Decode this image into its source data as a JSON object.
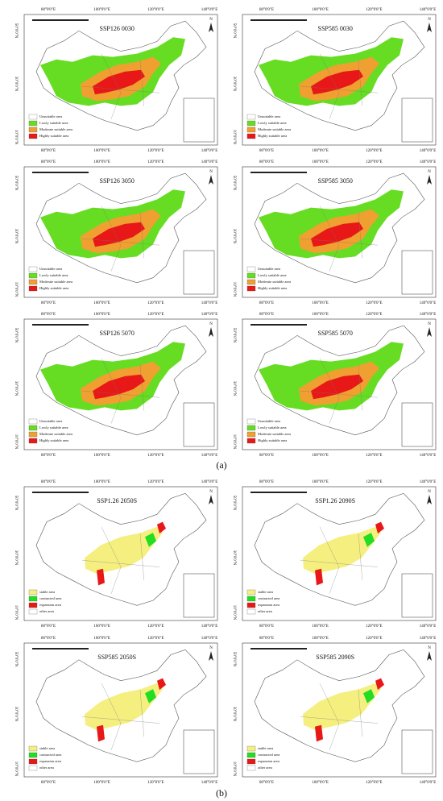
{
  "figure_a": {
    "caption": "(a)",
    "panels": [
      {
        "title": "SSP126 0030"
      },
      {
        "title": "SSP585 0030"
      },
      {
        "title": "SSP126 3050"
      },
      {
        "title": "SSP585 3050"
      },
      {
        "title": "SSP126 5070"
      },
      {
        "title": "SSP585 5070"
      }
    ],
    "legend": [
      {
        "label": "Unsuitable area",
        "color": "#ffffff"
      },
      {
        "label": "Lowly suitable area",
        "color": "#66dd22"
      },
      {
        "label": "Moderate suitable area",
        "color": "#f0a030"
      },
      {
        "label": "Highly suitable area",
        "color": "#e81818"
      }
    ]
  },
  "figure_b": {
    "caption": "(b)",
    "panels": [
      {
        "title": "SSP1.26 2050S"
      },
      {
        "title": "SSP1.26 2090S"
      },
      {
        "title": "SSP585 2050S"
      },
      {
        "title": "SSP585 2090S"
      }
    ],
    "legend": [
      {
        "label": "stable area",
        "color": "#f5ef80"
      },
      {
        "label": "contracted area",
        "color": "#22dd22"
      },
      {
        "label": "expansion area",
        "color": "#e81818"
      },
      {
        "label": "other area",
        "color": "#ffffff"
      }
    ]
  },
  "lon_labels": [
    "80°0'0\"E",
    "100°0'0\"E",
    "120°0'0\"E",
    "140°0'0\"E"
  ],
  "lat_labels": [
    "50°0'0\"N",
    "30°0'0\"N",
    "10°0'0\"N"
  ],
  "north": "N"
}
